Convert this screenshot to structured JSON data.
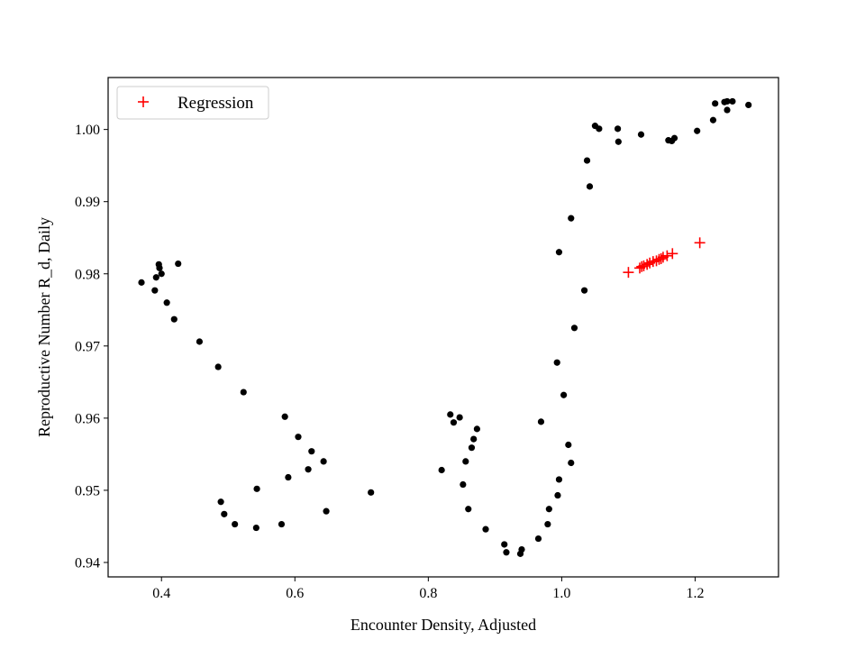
{
  "chart_data": {
    "type": "scatter",
    "title": "",
    "xlabel": "Encounter Density, Adjusted",
    "ylabel": "Reproductive Number R_d, Daily",
    "xlim": [
      0.32,
      1.325
    ],
    "ylim": [
      0.938,
      1.0072
    ],
    "x_ticks": [
      0.4,
      0.6,
      0.8,
      1.0,
      1.2
    ],
    "x_tick_labels": [
      "0.4",
      "0.6",
      "0.8",
      "1.0",
      "1.2"
    ],
    "y_ticks": [
      0.94,
      0.95,
      0.96,
      0.97,
      0.98,
      0.99,
      1.0
    ],
    "y_tick_labels": [
      "0.94",
      "0.95",
      "0.96",
      "0.97",
      "0.98",
      "0.99",
      "1.00"
    ],
    "grid": false,
    "legend_position": "top-left",
    "legend": [
      "Regression"
    ],
    "series": [
      {
        "name": "",
        "marker": "dot",
        "color": "#000000",
        "points": [
          [
            0.37,
            0.9788
          ],
          [
            0.39,
            0.9777
          ],
          [
            0.392,
            0.9795
          ],
          [
            0.396,
            0.9813
          ],
          [
            0.397,
            0.9808
          ],
          [
            0.4,
            0.98
          ],
          [
            0.408,
            0.976
          ],
          [
            0.419,
            0.9737
          ],
          [
            0.425,
            0.9814
          ],
          [
            0.457,
            0.9706
          ],
          [
            0.485,
            0.9671
          ],
          [
            0.489,
            0.9484
          ],
          [
            0.494,
            0.9467
          ],
          [
            0.51,
            0.9453
          ],
          [
            0.523,
            0.9636
          ],
          [
            0.542,
            0.9448
          ],
          [
            0.543,
            0.9502
          ],
          [
            0.58,
            0.9453
          ],
          [
            0.585,
            0.9602
          ],
          [
            0.59,
            0.9518
          ],
          [
            0.605,
            0.9574
          ],
          [
            0.62,
            0.9529
          ],
          [
            0.625,
            0.9554
          ],
          [
            0.643,
            0.954
          ],
          [
            0.647,
            0.9471
          ],
          [
            0.714,
            0.9497
          ],
          [
            0.82,
            0.9528
          ],
          [
            0.833,
            0.9605
          ],
          [
            0.838,
            0.9594
          ],
          [
            0.847,
            0.9601
          ],
          [
            0.852,
            0.9508
          ],
          [
            0.856,
            0.954
          ],
          [
            0.86,
            0.9474
          ],
          [
            0.865,
            0.9559
          ],
          [
            0.868,
            0.9571
          ],
          [
            0.873,
            0.9585
          ],
          [
            0.886,
            0.9446
          ],
          [
            0.914,
            0.9425
          ],
          [
            0.917,
            0.9414
          ],
          [
            0.938,
            0.9412
          ],
          [
            0.94,
            0.9418
          ],
          [
            0.965,
            0.9433
          ],
          [
            0.969,
            0.9595
          ],
          [
            0.979,
            0.9453
          ],
          [
            0.981,
            0.9474
          ],
          [
            0.993,
            0.9677
          ],
          [
            0.994,
            0.9493
          ],
          [
            0.996,
            0.9515
          ],
          [
            0.996,
            0.983
          ],
          [
            1.003,
            0.9632
          ],
          [
            1.01,
            0.9563
          ],
          [
            1.014,
            0.9538
          ],
          [
            1.014,
            0.9877
          ],
          [
            1.019,
            0.9725
          ],
          [
            1.034,
            0.9777
          ],
          [
            1.038,
            0.9957
          ],
          [
            1.042,
            0.9921
          ],
          [
            1.05,
            1.0005
          ],
          [
            1.056,
            1.0001
          ],
          [
            1.084,
            1.0001
          ],
          [
            1.085,
            0.9983
          ],
          [
            1.119,
            0.9993
          ],
          [
            1.16,
            0.9985
          ],
          [
            1.165,
            0.9984
          ],
          [
            1.169,
            0.9988
          ],
          [
            1.203,
            0.9998
          ],
          [
            1.227,
            1.0013
          ],
          [
            1.23,
            1.0036
          ],
          [
            1.244,
            1.0038
          ],
          [
            1.248,
            1.0027
          ],
          [
            1.248,
            1.0039
          ],
          [
            1.256,
            1.0039
          ],
          [
            1.28,
            1.0034
          ]
        ]
      },
      {
        "name": "Regression",
        "marker": "plus",
        "color": "#ff0000",
        "points": [
          [
            1.1,
            0.9802
          ],
          [
            1.117,
            0.9808
          ],
          [
            1.12,
            0.981
          ],
          [
            1.123,
            0.9811
          ],
          [
            1.128,
            0.9813
          ],
          [
            1.132,
            0.9815
          ],
          [
            1.137,
            0.9817
          ],
          [
            1.142,
            0.9818
          ],
          [
            1.146,
            0.982
          ],
          [
            1.149,
            0.9821
          ],
          [
            1.152,
            0.9823
          ],
          [
            1.158,
            0.9825
          ],
          [
            1.166,
            0.9828
          ],
          [
            1.207,
            0.9843
          ]
        ]
      }
    ]
  }
}
